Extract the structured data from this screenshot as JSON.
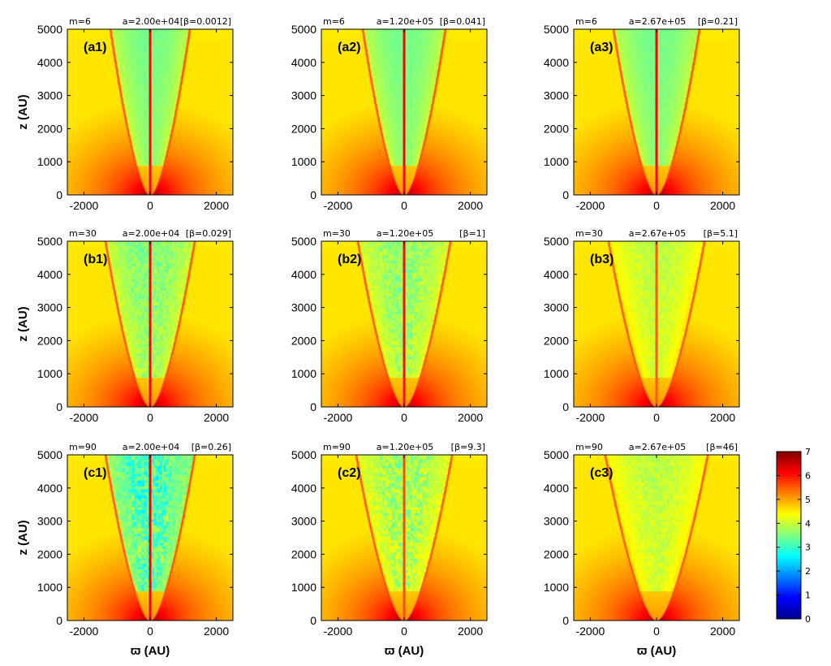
{
  "chart_data": {
    "type": "heatmap",
    "layout": "3x3 panel grid",
    "x_axis": {
      "label": "ϖ (AU)",
      "range": [
        -2500,
        2500
      ],
      "ticks": [
        -2000,
        0,
        2000
      ]
    },
    "y_axis": {
      "label": "z (AU)",
      "range": [
        0,
        5000
      ],
      "ticks": [
        0,
        1000,
        2000,
        3000,
        4000,
        5000
      ]
    },
    "colorbar": {
      "range": [
        0,
        7
      ],
      "ticks": [
        0,
        1,
        2,
        3,
        4,
        5,
        6,
        7
      ],
      "colormap": "jet"
    },
    "panels": [
      {
        "id": "a1",
        "label": "(a1)",
        "m": "m=6",
        "a": "a=2.00e+04",
        "beta": "[β=0.0012]",
        "cavity_half_width_top": 1200,
        "jet_width": 45,
        "knots": 0.1,
        "cyan_level": 3.4
      },
      {
        "id": "a2",
        "label": "(a2)",
        "m": "m=6",
        "a": "a=1.20e+05",
        "beta": "[β=0.041]",
        "cavity_half_width_top": 1250,
        "jet_width": 45,
        "knots": 0.1,
        "cyan_level": 3.4
      },
      {
        "id": "a3",
        "label": "(a3)",
        "m": "m=6",
        "a": "a=2.67e+05",
        "beta": "[β=0.21]",
        "cavity_half_width_top": 1300,
        "jet_width": 45,
        "knots": 0.1,
        "cyan_level": 3.4
      },
      {
        "id": "b1",
        "label": "(b1)",
        "m": "m=30",
        "a": "a=2.00e+04",
        "beta": "[β=0.029]",
        "cavity_half_width_top": 1350,
        "jet_width": 50,
        "knots": 0.45,
        "cyan_level": 3.5
      },
      {
        "id": "b2",
        "label": "(b2)",
        "m": "m=30",
        "a": "a=1.20e+05",
        "beta": "[β=1]",
        "cavity_half_width_top": 1400,
        "jet_width": 40,
        "knots": 0.5,
        "cyan_level": 3.6
      },
      {
        "id": "b3",
        "label": "(b3)",
        "m": "m=30",
        "a": "a=2.67e+05",
        "beta": "[β=5.1]",
        "cavity_half_width_top": 1450,
        "jet_width": 20,
        "knots": 0.25,
        "cyan_level": 3.9
      },
      {
        "id": "c1",
        "label": "(c1)",
        "m": "m=90",
        "a": "a=2.00e+04",
        "beta": "[β=0.26]",
        "cavity_half_width_top": 1350,
        "jet_width": 55,
        "knots": 0.9,
        "cyan_level": 3.1
      },
      {
        "id": "c2",
        "label": "(c2)",
        "m": "m=90",
        "a": "a=1.20e+05",
        "beta": "[β=9.3]",
        "cavity_half_width_top": 1450,
        "jet_width": 25,
        "knots": 0.7,
        "cyan_level": 3.7
      },
      {
        "id": "c3",
        "label": "(c3)",
        "m": "m=90",
        "a": "a=2.67e+05",
        "beta": "[β=46]",
        "cavity_half_width_top": 1550,
        "jet_width": 15,
        "knots": 0.3,
        "cyan_level": 3.9
      }
    ]
  }
}
